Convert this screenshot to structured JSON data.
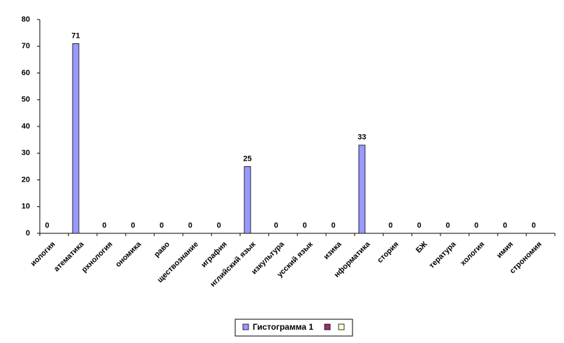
{
  "chart_data": {
    "type": "bar",
    "categories": [
      "иология",
      "атематика",
      "рхнология",
      "ономика",
      "раво",
      "ществознание",
      "играфия",
      "нглийский язык",
      "изкультура",
      "усский язык",
      "изика",
      "нформатика",
      "стория",
      "БЖ",
      "тература",
      "хология",
      "имия",
      "строномия"
    ],
    "series": [
      {
        "name": "Гистограмма 1",
        "color": "#9999ff",
        "values": [
          0,
          71,
          0,
          0,
          0,
          0,
          0,
          25,
          0,
          0,
          0,
          33,
          0,
          0,
          0,
          0,
          0,
          0
        ]
      }
    ],
    "ylim": [
      0,
      80
    ],
    "yticks": [
      0,
      10,
      20,
      30,
      40,
      50,
      60,
      70,
      80
    ],
    "grid": false
  }
}
